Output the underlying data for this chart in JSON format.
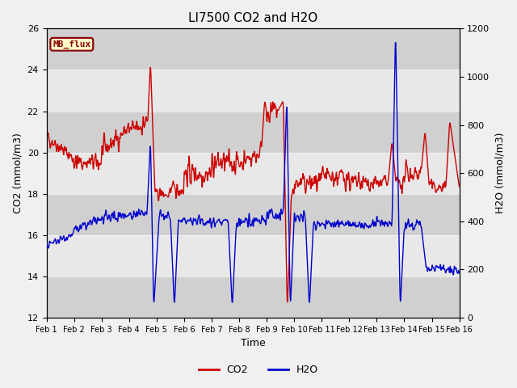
{
  "title": "LI7500 CO2 and H2O",
  "xlabel": "Time",
  "ylabel_left": "CO2 (mmol/m3)",
  "ylabel_right": "H2O (mmol/m3)",
  "ylim_left": [
    12,
    26
  ],
  "ylim_right": [
    0,
    1200
  ],
  "co2_color": "#cc0000",
  "h2o_color": "#0000cc",
  "bg_color": "#f0f0f0",
  "band_light": "#e8e8e8",
  "band_dark": "#d0d0d0",
  "mb_flux_bg": "#ffffcc",
  "mb_flux_border": "#8b0000",
  "mb_flux_text": "#8b0000",
  "legend_co2": "CO2",
  "legend_h2o": "H2O",
  "xtick_labels": [
    "Feb 1",
    "Feb 2",
    "Feb 3",
    "Feb 4",
    "Feb 5",
    "Feb 6",
    "Feb 7",
    "Feb 8",
    "Feb 9",
    "Feb 10",
    "Feb 11",
    "Feb 12",
    "Feb 13",
    "Feb 14",
    "Feb 15",
    "Feb 16"
  ],
  "yticks_left": [
    12,
    14,
    16,
    18,
    20,
    22,
    24,
    26
  ],
  "yticks_right": [
    0,
    200,
    400,
    600,
    800,
    1000,
    1200
  ],
  "line_width": 1.0,
  "fig_width": 6.4,
  "fig_height": 4.8,
  "dpi": 100
}
